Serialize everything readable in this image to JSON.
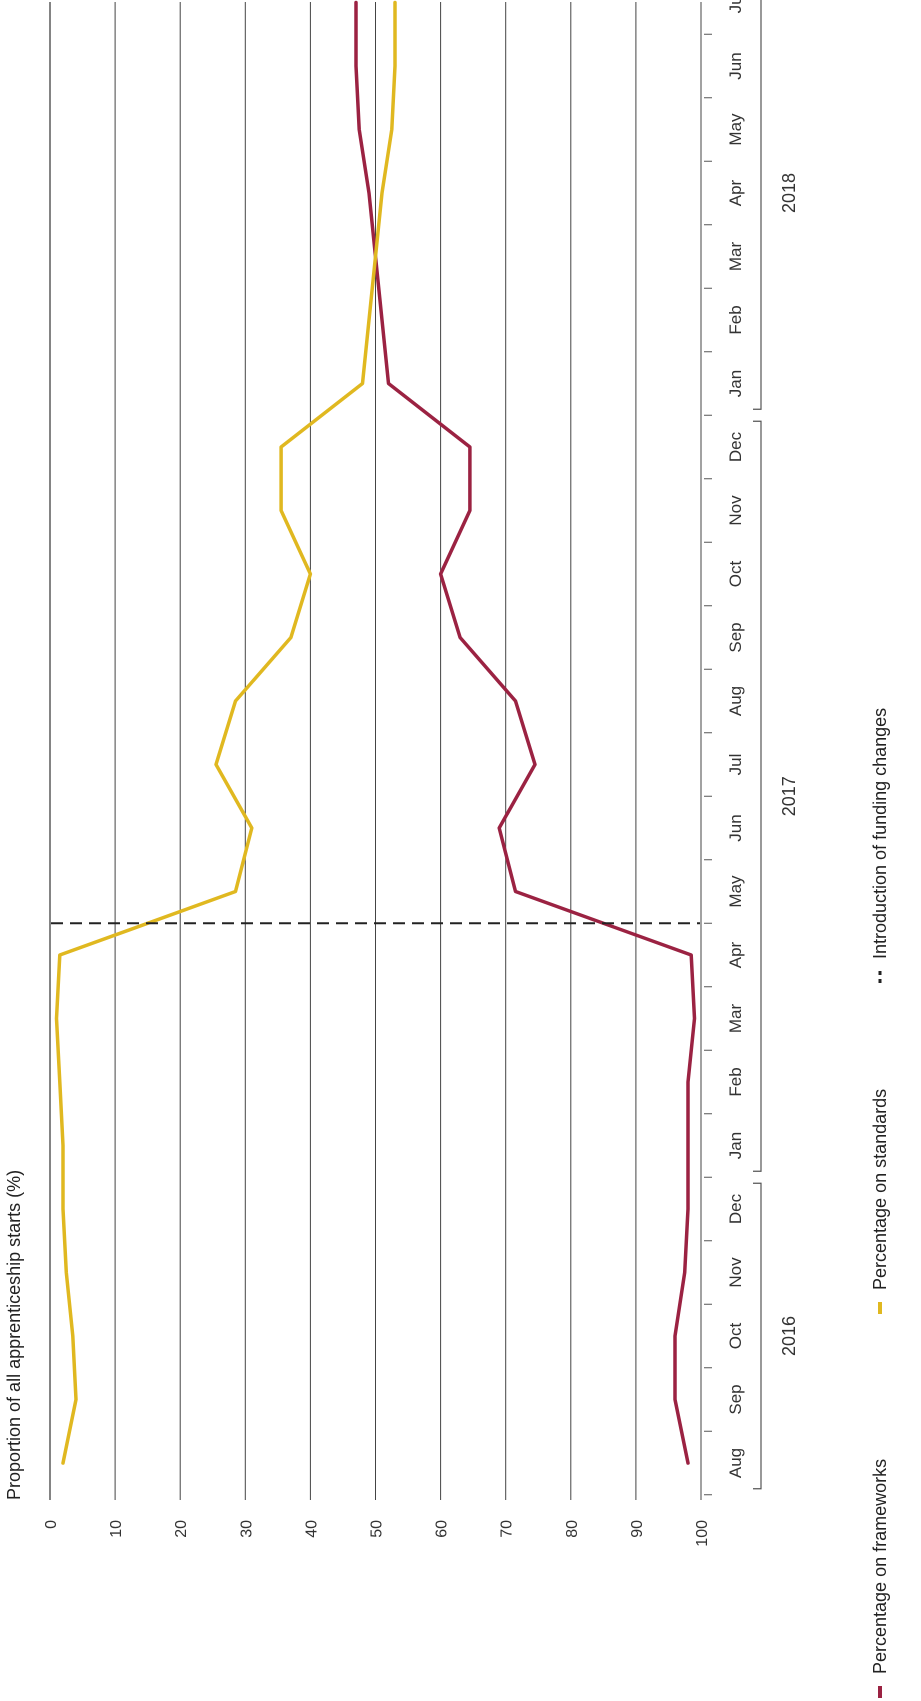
{
  "chart_data": {
    "type": "line",
    "orientation": "rotated-90-ccw",
    "ylabel": "Proportion of all apprenticeship starts (%)",
    "ylim": [
      0,
      100
    ],
    "yticks": [
      "0",
      "10",
      "20",
      "30",
      "40",
      "50",
      "60",
      "70",
      "80",
      "90",
      "100"
    ],
    "grid": true,
    "categories": [
      "Aug",
      "Sep",
      "Oct",
      "Nov",
      "Dec",
      "Jan",
      "Feb",
      "Mar",
      "Apr",
      "May",
      "Jun",
      "Jul",
      "Aug",
      "Sep",
      "Oct",
      "Nov",
      "Dec",
      "Jan",
      "Feb",
      "Mar",
      "Apr",
      "May",
      "Jun",
      "Jul"
    ],
    "year_groups": [
      {
        "label": "2016",
        "start": 0,
        "end": 4
      },
      {
        "label": "2017",
        "start": 5,
        "end": 16
      },
      {
        "label": "2018",
        "start": 17,
        "end": 23
      }
    ],
    "series": [
      {
        "name": "Percentage on frameworks",
        "color": "#9b2242",
        "values": [
          98,
          96,
          96,
          97.5,
          98,
          98,
          98,
          99,
          98.5,
          71.5,
          69,
          74.5,
          71.5,
          63,
          60,
          64.5,
          64.5,
          52,
          51,
          50,
          49,
          47.5,
          47,
          47
        ]
      },
      {
        "name": "Percentage on standards",
        "color": "#e0b820",
        "values": [
          2,
          4,
          3.5,
          2.5,
          2,
          2,
          1.5,
          1,
          1.5,
          28.5,
          31,
          25.5,
          28.5,
          37,
          40,
          35.5,
          35.5,
          48,
          49,
          50,
          51,
          52.5,
          53,
          53
        ]
      }
    ],
    "annotations": [
      {
        "type": "vline",
        "style": "dashed",
        "color": "#222222",
        "position": 8.5,
        "label": "Introduction of funding changes"
      }
    ],
    "legend_position": "bottom",
    "legend": [
      {
        "label": "Percentage on frameworks",
        "color": "#9b2242",
        "marker": "solid"
      },
      {
        "label": "Percentage on standards",
        "color": "#e0b820",
        "marker": "solid"
      },
      {
        "label": "Introduction of funding changes",
        "color": "#222222",
        "marker": "dashed"
      }
    ]
  }
}
